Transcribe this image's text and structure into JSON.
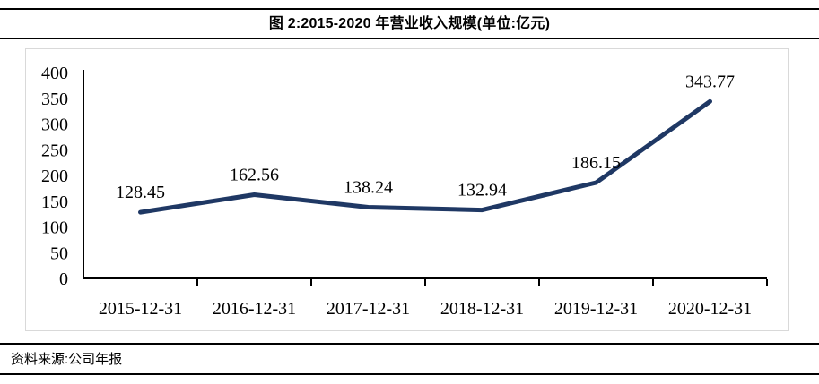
{
  "header": {
    "title": "图 2:2015-2020 年营业收入规模(单位:亿元)"
  },
  "chart_data": {
    "type": "line",
    "title": "图 2:2015-2020 年营业收入规模(单位:亿元)",
    "unit": "亿元",
    "categories": [
      "2015-12-31",
      "2016-12-31",
      "2017-12-31",
      "2018-12-31",
      "2019-12-31",
      "2020-12-31"
    ],
    "values": [
      128.45,
      162.56,
      138.24,
      132.94,
      186.15,
      343.77
    ],
    "data_labels": [
      "128.45",
      "162.56",
      "138.24",
      "132.94",
      "186.15",
      "343.77"
    ],
    "y_ticks": [
      0,
      50,
      100,
      150,
      200,
      250,
      300,
      350,
      400
    ],
    "ylim": [
      0,
      400
    ],
    "grid": false,
    "legend": "none",
    "line_color": "#1F3864"
  },
  "footer": {
    "source": "资料来源:公司年报"
  },
  "colors": {
    "line": "#1F3864",
    "rule": "#000000",
    "chart_border": "#D9D9D9",
    "text": "#000000"
  }
}
